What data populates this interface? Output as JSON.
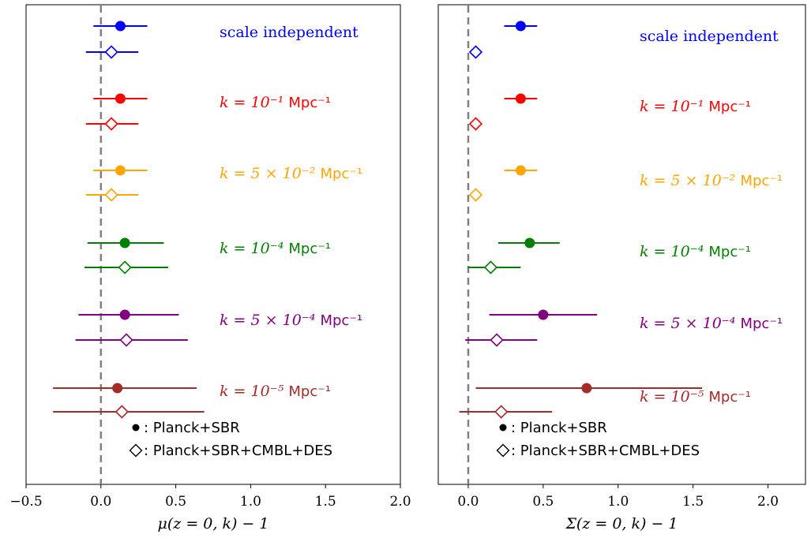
{
  "chart_data": [
    {
      "type": "errorbar",
      "xlabel": "μ(z = 0, k) − 1",
      "xlim": [
        -0.5,
        2.0
      ],
      "xticks": [
        -0.5,
        0.0,
        0.5,
        1.0,
        1.5,
        2.0
      ],
      "xtick_labels": [
        "−0.5",
        "0.0",
        "0.5",
        "1.0",
        "1.5",
        "2.0"
      ],
      "reference_line": 0.0,
      "categories": [
        {
          "label": "scale independent",
          "color": "#0000ff",
          "planck_sbr": {
            "value": 0.13,
            "lo": -0.05,
            "hi": 0.31
          },
          "planck_sbr_cmbl_des": {
            "value": 0.07,
            "lo": -0.1,
            "hi": 0.25
          }
        },
        {
          "label": "k = 10⁻¹ Mpc⁻¹",
          "color": "#ff0000",
          "planck_sbr": {
            "value": 0.13,
            "lo": -0.05,
            "hi": 0.31
          },
          "planck_sbr_cmbl_des": {
            "value": 0.07,
            "lo": -0.1,
            "hi": 0.25
          }
        },
        {
          "label": "k = 5 × 10⁻² Mpc⁻¹",
          "color": "#ffa500",
          "planck_sbr": {
            "value": 0.13,
            "lo": -0.05,
            "hi": 0.31
          },
          "planck_sbr_cmbl_des": {
            "value": 0.07,
            "lo": -0.1,
            "hi": 0.25
          }
        },
        {
          "label": "k = 10⁻⁴ Mpc⁻¹",
          "color": "#008000",
          "planck_sbr": {
            "value": 0.16,
            "lo": -0.09,
            "hi": 0.42
          },
          "planck_sbr_cmbl_des": {
            "value": 0.16,
            "lo": -0.11,
            "hi": 0.45
          }
        },
        {
          "label": "k = 5 × 10⁻⁴ Mpc⁻¹",
          "color": "#800080",
          "planck_sbr": {
            "value": 0.16,
            "lo": -0.15,
            "hi": 0.52
          },
          "planck_sbr_cmbl_des": {
            "value": 0.17,
            "lo": -0.17,
            "hi": 0.58
          }
        },
        {
          "label": "k = 10⁻⁵ Mpc⁻¹",
          "color": "#a52a2a",
          "planck_sbr": {
            "value": 0.11,
            "lo": -0.32,
            "hi": 0.64
          },
          "planck_sbr_cmbl_des": {
            "value": 0.14,
            "lo": -0.32,
            "hi": 0.69
          }
        }
      ],
      "legend": [
        {
          "marker": "●",
          "text": " : Planck+SBR"
        },
        {
          "marker": "◇",
          "text": " : Planck+SBR+CMBL+DES"
        }
      ]
    },
    {
      "type": "errorbar",
      "xlabel": "Σ(z = 0, k) − 1",
      "xlim": [
        -0.2,
        2.25
      ],
      "xticks": [
        0.0,
        0.5,
        1.0,
        1.5,
        2.0
      ],
      "xtick_labels": [
        "0.0",
        "0.5",
        "1.0",
        "1.5",
        "2.0"
      ],
      "reference_line": 0.0,
      "categories": [
        {
          "label": "scale independent",
          "color": "#0000ff",
          "planck_sbr": {
            "value": 0.35,
            "lo": 0.24,
            "hi": 0.46
          },
          "planck_sbr_cmbl_des": {
            "value": 0.05,
            "lo": 0.05,
            "hi": 0.05
          }
        },
        {
          "label": "k = 10⁻¹ Mpc⁻¹",
          "color": "#ff0000",
          "planck_sbr": {
            "value": 0.35,
            "lo": 0.24,
            "hi": 0.46
          },
          "planck_sbr_cmbl_des": {
            "value": 0.05,
            "lo": 0.05,
            "hi": 0.05
          }
        },
        {
          "label": "k = 5 × 10⁻² Mpc⁻¹",
          "color": "#ffa500",
          "planck_sbr": {
            "value": 0.35,
            "lo": 0.24,
            "hi": 0.46
          },
          "planck_sbr_cmbl_des": {
            "value": 0.05,
            "lo": 0.05,
            "hi": 0.05
          }
        },
        {
          "label": "k = 10⁻⁴ Mpc⁻¹",
          "color": "#008000",
          "planck_sbr": {
            "value": 0.41,
            "lo": 0.2,
            "hi": 0.61
          },
          "planck_sbr_cmbl_des": {
            "value": 0.15,
            "lo": 0.0,
            "hi": 0.35
          }
        },
        {
          "label": "k = 5 × 10⁻⁴ Mpc⁻¹",
          "color": "#800080",
          "planck_sbr": {
            "value": 0.5,
            "lo": 0.14,
            "hi": 0.86
          },
          "planck_sbr_cmbl_des": {
            "value": 0.19,
            "lo": -0.02,
            "hi": 0.46
          }
        },
        {
          "label": "k = 10⁻⁵ Mpc⁻¹",
          "color": "#a52a2a",
          "planck_sbr": {
            "value": 0.79,
            "lo": 0.05,
            "hi": 1.56
          },
          "planck_sbr_cmbl_des": {
            "value": 0.22,
            "lo": -0.06,
            "hi": 0.56
          }
        }
      ],
      "legend": [
        {
          "marker": "●",
          "text": " : Planck+SBR"
        },
        {
          "marker": "◇",
          "text": " : Planck+SBR+CMBL+DES"
        }
      ]
    }
  ]
}
